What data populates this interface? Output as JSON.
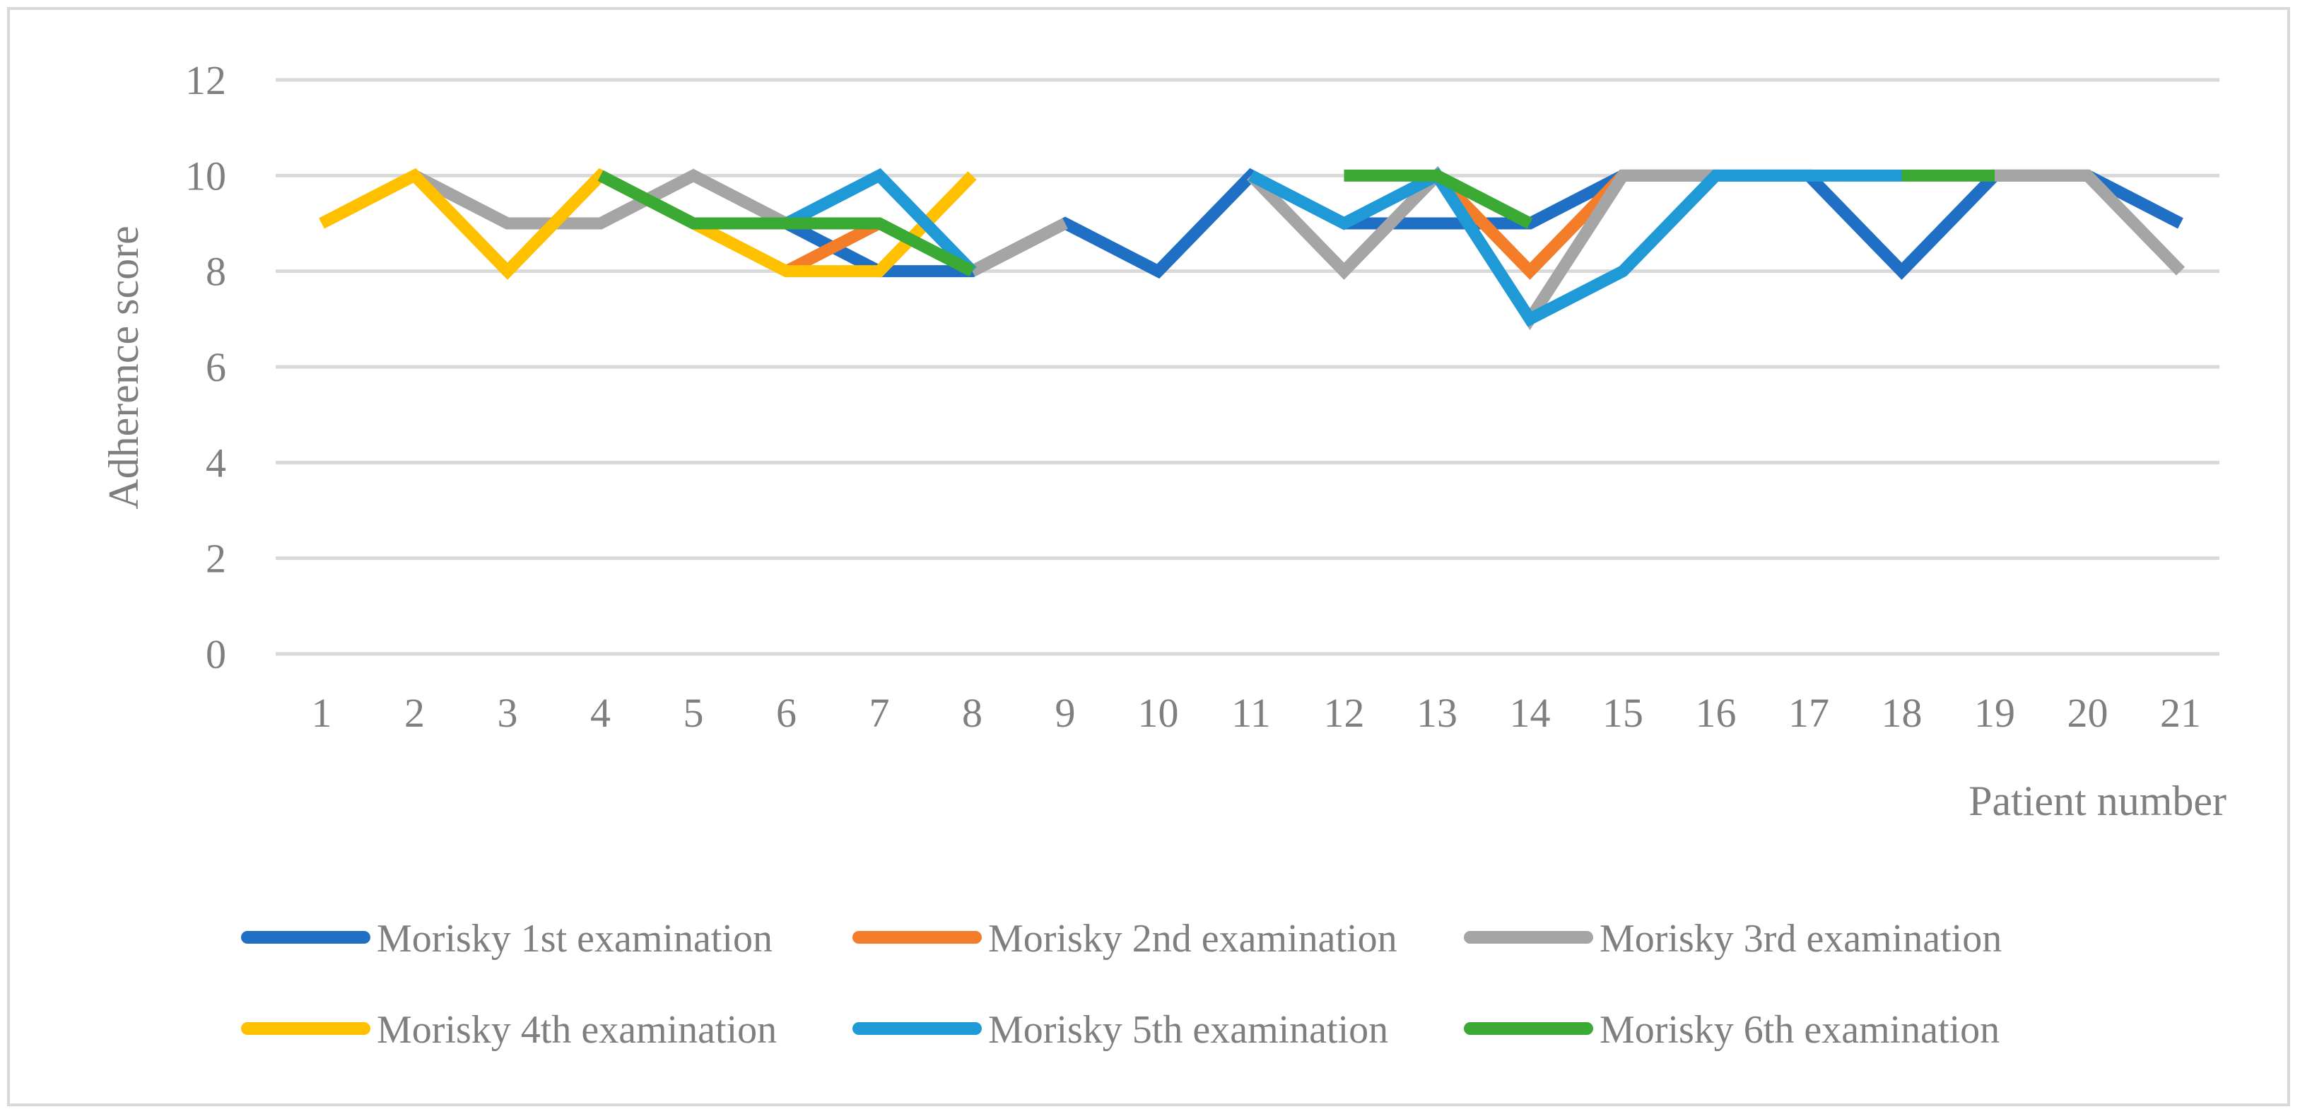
{
  "chart_data": {
    "type": "line",
    "title": "",
    "xlabel": "Patient number",
    "ylabel": "Adherence score",
    "ylim": [
      0,
      12
    ],
    "yticks": [
      0,
      2,
      4,
      6,
      8,
      10,
      12
    ],
    "grid": true,
    "legend_position": "bottom",
    "categories": [
      "1",
      "2",
      "3",
      "4",
      "5",
      "6",
      "7",
      "8",
      "9",
      "10",
      "11",
      "12",
      "13",
      "14",
      "15",
      "16",
      "17",
      "18",
      "19",
      "20",
      "21"
    ],
    "series": [
      {
        "name": "Morisky 1st examination",
        "color": "#1f6fc4",
        "values": [
          null,
          null,
          null,
          null,
          null,
          9,
          8,
          8,
          9,
          8,
          10,
          9,
          9,
          9,
          10,
          10,
          10,
          8,
          10,
          10,
          9
        ]
      },
      {
        "name": "Morisky 2nd examination",
        "color": "#f47d2a",
        "values": [
          null,
          null,
          null,
          null,
          null,
          8,
          9,
          null,
          null,
          null,
          null,
          null,
          10,
          8,
          10,
          null,
          null,
          null,
          null,
          null,
          null
        ]
      },
      {
        "name": "Morisky 3rd examination",
        "color": "#a5a5a5",
        "values": [
          null,
          10,
          9,
          9,
          10,
          9,
          null,
          8,
          9,
          null,
          10,
          8,
          10,
          7,
          10,
          10,
          null,
          null,
          10,
          10,
          8
        ]
      },
      {
        "name": "Morisky 4th examination",
        "color": "#ffc000",
        "values": [
          9,
          10,
          8,
          10,
          9,
          8,
          8,
          10,
          null,
          null,
          null,
          null,
          null,
          null,
          null,
          null,
          null,
          null,
          null,
          null,
          null
        ]
      },
      {
        "name": "Morisky 5th examination",
        "color": "#1f9ad6",
        "values": [
          null,
          null,
          null,
          null,
          null,
          9,
          10,
          8,
          null,
          null,
          10,
          9,
          10,
          7,
          8,
          10,
          10,
          10,
          null,
          null,
          null
        ]
      },
      {
        "name": "Morisky 6th examination",
        "color": "#3aaa35",
        "values": [
          null,
          null,
          null,
          10,
          9,
          9,
          9,
          8,
          null,
          null,
          null,
          10,
          10,
          9,
          null,
          null,
          null,
          10,
          10,
          null,
          null
        ]
      }
    ]
  }
}
